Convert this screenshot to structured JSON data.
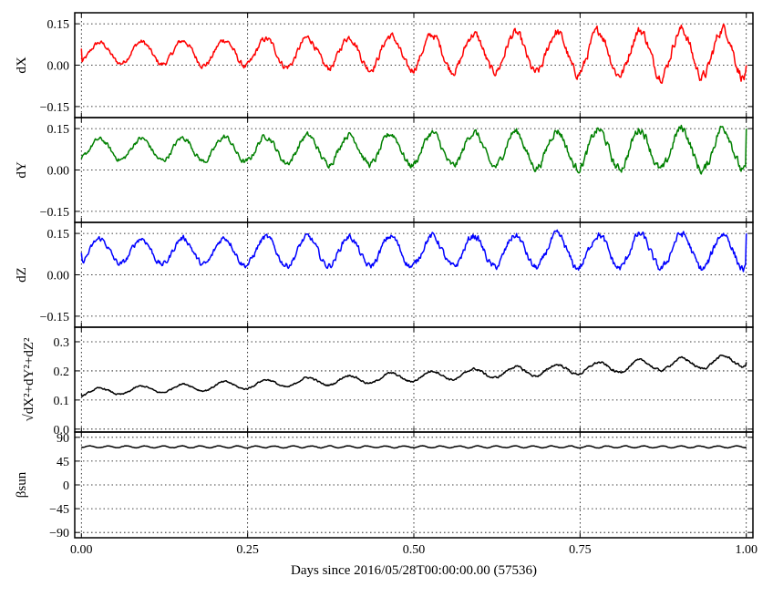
{
  "chart_data": [
    {
      "type": "line",
      "ylabel": "dX",
      "ylim": [
        -0.19,
        0.19
      ],
      "yticks": [
        "0.15",
        "0.00",
        "−0.15"
      ],
      "ytick_values": [
        0.15,
        0.0,
        -0.15
      ],
      "grid": true,
      "series": [
        {
          "color": "#ff0000",
          "period": 0.0625,
          "baseline": 0.045,
          "amp_start": 0.035,
          "amp_end": 0.09,
          "y_first": 0.06,
          "y_last": 0.0
        }
      ]
    },
    {
      "type": "line",
      "ylabel": "dY",
      "ylim": [
        -0.19,
        0.19
      ],
      "yticks": [
        "0.15",
        "0.00",
        "−0.15"
      ],
      "ytick_values": [
        0.15,
        0.0,
        -0.15
      ],
      "grid": true,
      "series": [
        {
          "color": "#008000",
          "period": 0.0625,
          "baseline": 0.075,
          "amp_start": 0.035,
          "amp_end": 0.08,
          "y_first": 0.04,
          "y_last": 0.15
        }
      ]
    },
    {
      "type": "line",
      "ylabel": "dZ",
      "ylim": [
        -0.19,
        0.19
      ],
      "yticks": [
        "0.15",
        "0.00",
        "−0.15"
      ],
      "ytick_values": [
        0.15,
        0.0,
        -0.15
      ],
      "grid": true,
      "series": [
        {
          "color": "#0000ff",
          "period": 0.0625,
          "baseline": 0.085,
          "amp_start": 0.045,
          "amp_end": 0.065,
          "y_first": 0.08,
          "y_last": 0.15
        }
      ]
    },
    {
      "type": "line",
      "ylabel": "√dX²+dY²+dZ²",
      "ylim": [
        -0.01,
        0.35
      ],
      "yticks": [
        "0.3",
        "0.2",
        "0.1",
        "0.0"
      ],
      "ytick_values": [
        0.3,
        0.2,
        0.1,
        0.0
      ],
      "grid": true,
      "series": [
        {
          "color": "#000000",
          "period": 0.0625,
          "baseline_start": 0.125,
          "baseline_end": 0.235,
          "amp_start": 0.012,
          "amp_end": 0.02,
          "y_first": 0.12,
          "y_last": 0.23
        }
      ]
    },
    {
      "type": "line",
      "ylabel": "βsun",
      "ylim": [
        -100,
        100
      ],
      "yticks": [
        "90",
        "45",
        "0",
        "−45",
        "−90"
      ],
      "ytick_values": [
        90,
        45,
        0,
        -45,
        -90
      ],
      "grid": true,
      "series": [
        {
          "color": "#000000",
          "period": 0.0278,
          "baseline": 72,
          "amp_start": 1.8,
          "amp_end": 1.8,
          "y_first": 72,
          "y_last": 72
        }
      ]
    }
  ],
  "x_axis": {
    "label": "Days since 2016/05/28T00:00:00.00 (57536)",
    "xlim": [
      -0.01,
      1.01
    ],
    "ticks": [
      "0.00",
      "0.25",
      "0.50",
      "0.75",
      "1.00"
    ],
    "tick_values": [
      0.0,
      0.25,
      0.5,
      0.75,
      1.0
    ]
  }
}
